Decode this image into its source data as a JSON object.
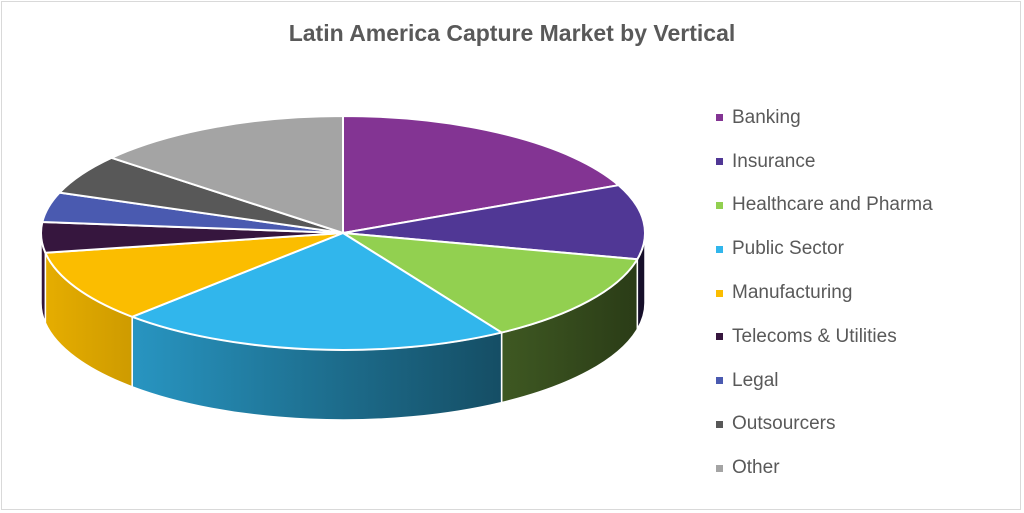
{
  "chart_data": {
    "type": "pie",
    "title": "Latin America Capture Market by Vertical",
    "legend_position": "right",
    "categories": [
      "Banking",
      "Insurance",
      "Healthcare and Pharma",
      "Public Sector",
      "Manufacturing",
      "Telecoms & Utilities",
      "Legal",
      "Outsourcers",
      "Other"
    ],
    "values": [
      18.3,
      10.3,
      12.6,
      21.1,
      10.0,
      4.2,
      4.1,
      5.5,
      13.9
    ],
    "colors": [
      "#833493",
      "#503795",
      "#92d050",
      "#31b6ec",
      "#fbbd00",
      "#36163e",
      "#4a5ab0",
      "#585858",
      "#a4a4a4"
    ],
    "start_angle_deg": 0,
    "direction": "clockwise",
    "style": "3d-tilted"
  }
}
